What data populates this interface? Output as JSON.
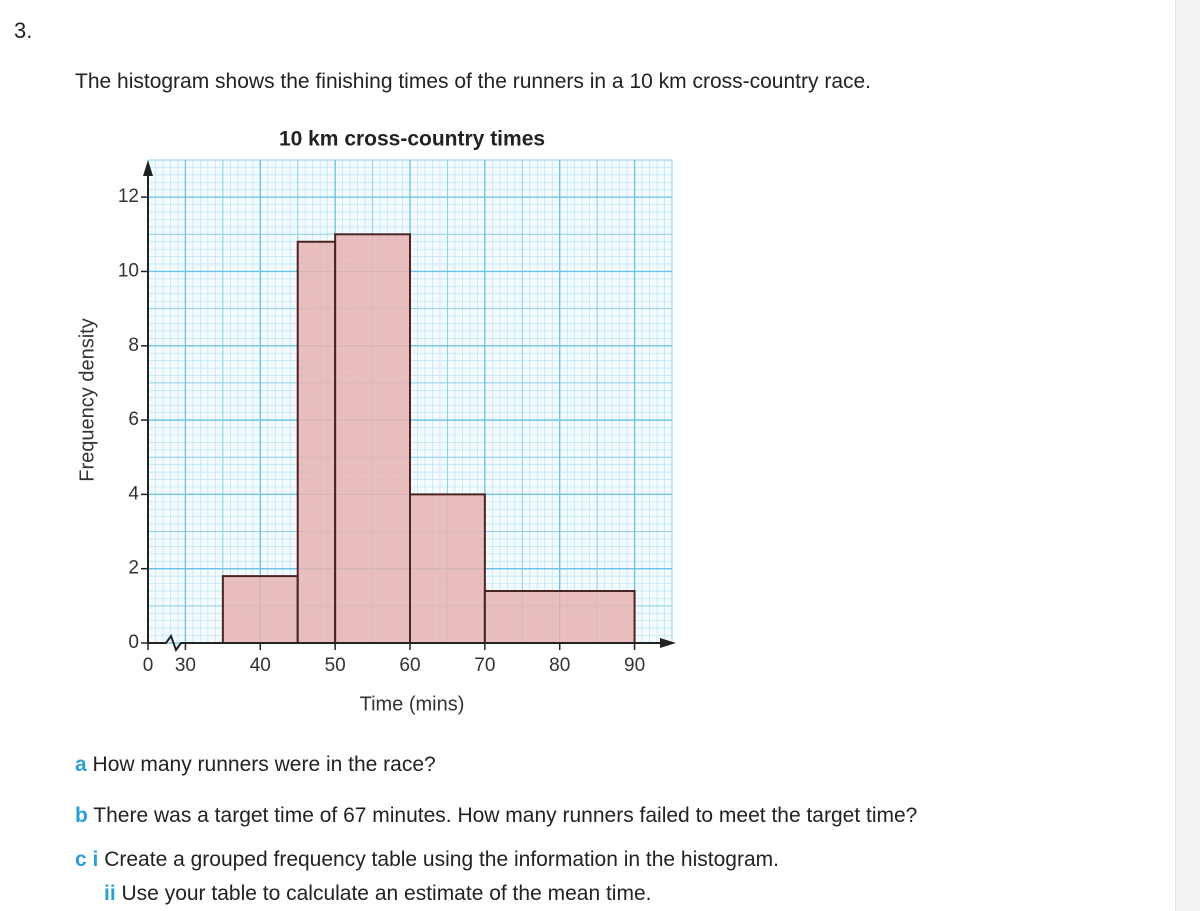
{
  "question_number": "3.",
  "intro": "The histogram shows the finishing times of the runners in a 10 km cross-country race.",
  "chart_data": {
    "type": "histogram",
    "title": "10 km cross-country times",
    "x_label": "Time (mins)",
    "y_label": "Frequency density",
    "bins": [
      35,
      45,
      50,
      60,
      70,
      90
    ],
    "counts": [
      1.8,
      10.8,
      11,
      4,
      1.4
    ],
    "color": "#e7b3b3",
    "edge_color": "#4a2323",
    "xlim": [
      25,
      95
    ],
    "xticks": [
      0,
      30,
      40,
      50,
      60,
      70,
      80,
      90
    ],
    "axis_break": true,
    "ylim": [
      0,
      13
    ],
    "yticks": [
      0,
      2,
      4,
      6,
      8,
      10,
      12
    ],
    "grid": true
  },
  "questions": [
    {
      "label": "a",
      "text": "How many runners were in the race?"
    },
    {
      "label": "b",
      "text": "There was a target time of 67 minutes. How many runners failed to meet the target time?"
    },
    {
      "label": "c",
      "parts": [
        {
          "label": "i",
          "text": "Create a grouped frequency table using the information in the histogram."
        },
        {
          "label": "ii",
          "text": "Use your table to calculate an estimate of the mean time."
        }
      ]
    }
  ]
}
